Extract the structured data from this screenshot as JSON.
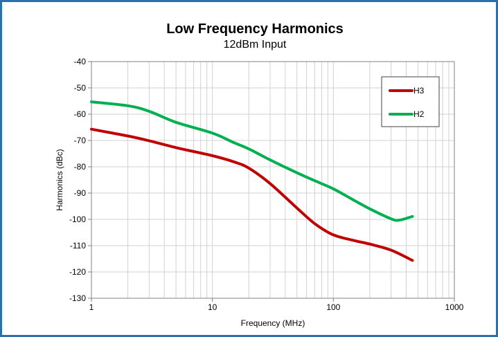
{
  "chart_data": {
    "type": "line",
    "title": "Low Frequency Harmonics",
    "subtitle": "12dBm Input",
    "xlabel": "Frequency (MHz)",
    "ylabel": "Harmonics (dBc)",
    "x_scale": "log",
    "xlim": [
      1,
      1000
    ],
    "ylim": [
      -130,
      -40
    ],
    "x_ticks": [
      "1",
      "10",
      "100",
      "1000"
    ],
    "y_ticks": [
      "-40",
      "-50",
      "-60",
      "-70",
      "-80",
      "-90",
      "-100",
      "-110",
      "-120",
      "-130"
    ],
    "grid": true,
    "legend_position": "top-right",
    "series": [
      {
        "name": "H3",
        "color": "#c00000",
        "x": [
          1,
          2,
          3,
          5,
          10,
          15,
          20,
          30,
          50,
          70,
          100,
          150,
          200,
          300,
          450
        ],
        "y": [
          -65.7,
          -68.3,
          -70.1,
          -72.7,
          -75.8,
          -78.1,
          -80.5,
          -86.4,
          -95.7,
          -101.6,
          -105.9,
          -108.1,
          -109.4,
          -111.7,
          -115.6
        ]
      },
      {
        "name": "H2",
        "color": "#00b050",
        "x": [
          1,
          2,
          3,
          5,
          10,
          15,
          20,
          30,
          50,
          70,
          100,
          150,
          200,
          300,
          350,
          450
        ],
        "y": [
          -55.3,
          -56.8,
          -58.9,
          -63.1,
          -67.2,
          -70.8,
          -73.2,
          -77.4,
          -82.3,
          -85.3,
          -88.4,
          -92.9,
          -96.0,
          -99.8,
          -100.3,
          -98.9
        ]
      }
    ]
  }
}
